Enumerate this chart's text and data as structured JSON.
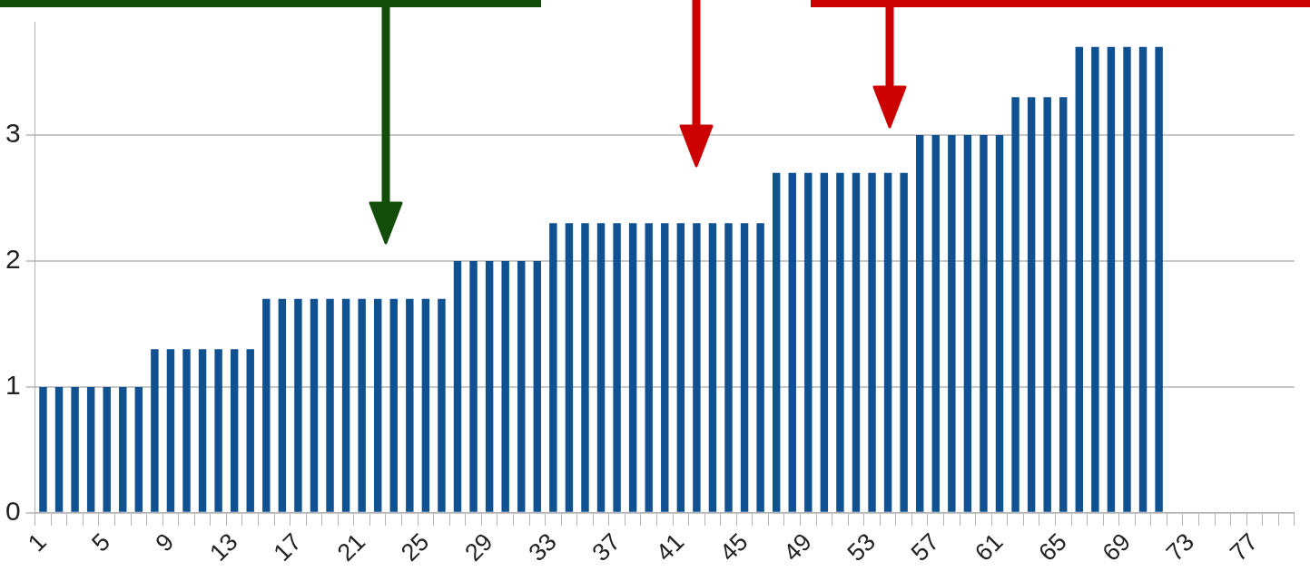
{
  "chart_data": {
    "type": "bar",
    "categories": [
      "1",
      null,
      null,
      null,
      "5",
      null,
      null,
      null,
      "9",
      null,
      null,
      null,
      "13",
      null,
      null,
      null,
      "17",
      null,
      null,
      null,
      "21",
      null,
      null,
      null,
      "25",
      null,
      null,
      null,
      "29",
      null,
      null,
      null,
      "33",
      null,
      null,
      null,
      "37",
      null,
      null,
      null,
      "41",
      null,
      null,
      null,
      "45",
      null,
      null,
      null,
      "49",
      null,
      null,
      null,
      "53",
      null,
      null,
      null,
      "57",
      null,
      null,
      null,
      "61",
      null,
      null,
      null,
      "65",
      null,
      null,
      null,
      "69",
      null,
      null,
      null,
      "73",
      null,
      null,
      null,
      "77",
      null,
      null
    ],
    "values": [
      1,
      1,
      1,
      1,
      1,
      1,
      1,
      1.3,
      1.3,
      1.3,
      1.3,
      1.3,
      1.3,
      1.3,
      1.7,
      1.7,
      1.7,
      1.7,
      1.7,
      1.7,
      1.7,
      1.7,
      1.7,
      1.7,
      1.7,
      1.7,
      2,
      2,
      2,
      2,
      2,
      2,
      2.3,
      2.3,
      2.3,
      2.3,
      2.3,
      2.3,
      2.3,
      2.3,
      2.3,
      2.3,
      2.3,
      2.3,
      2.3,
      2.3,
      2.7,
      2.7,
      2.7,
      2.7,
      2.7,
      2.7,
      2.7,
      2.7,
      2.7,
      3,
      3,
      3,
      3,
      3,
      3,
      3.3,
      3.3,
      3.3,
      3.3,
      3.7,
      3.7,
      3.7,
      3.7,
      3.7,
      3.7,
      null,
      null,
      null,
      null,
      null,
      null,
      null,
      null
    ],
    "color": "#0f5191",
    "ylim": [
      0,
      3.9
    ],
    "yticks": [
      0,
      1,
      2,
      3
    ],
    "grid": "y",
    "legend": false
  }
}
